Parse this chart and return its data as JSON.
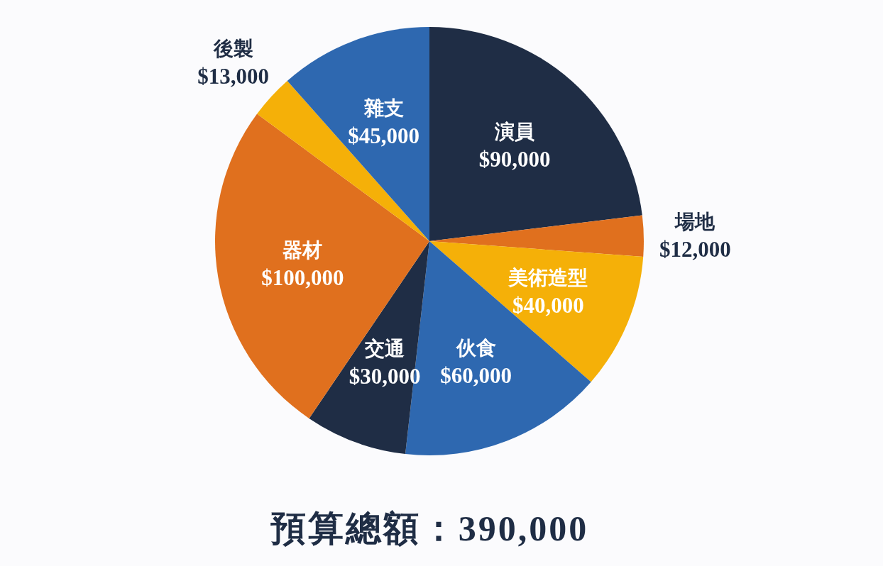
{
  "chart_data": {
    "type": "pie",
    "title": "預算總額：390,000",
    "categories": [
      "演員",
      "場地",
      "美術造型",
      "伙食",
      "交通",
      "器材",
      "後製",
      "雜支"
    ],
    "values": [
      90000,
      12000,
      40000,
      60000,
      30000,
      100000,
      13000,
      45000
    ],
    "value_labels": [
      "$90,000",
      "$12,000",
      "$40,000",
      "$60,000",
      "$30,000",
      "$100,000",
      "$13,000",
      "$45,000"
    ],
    "colors": [
      "#1f2d45",
      "#e0701e",
      "#f5b008",
      "#2e68b0",
      "#1f2d45",
      "#e0701e",
      "#f5b008",
      "#2e68b0"
    ]
  }
}
